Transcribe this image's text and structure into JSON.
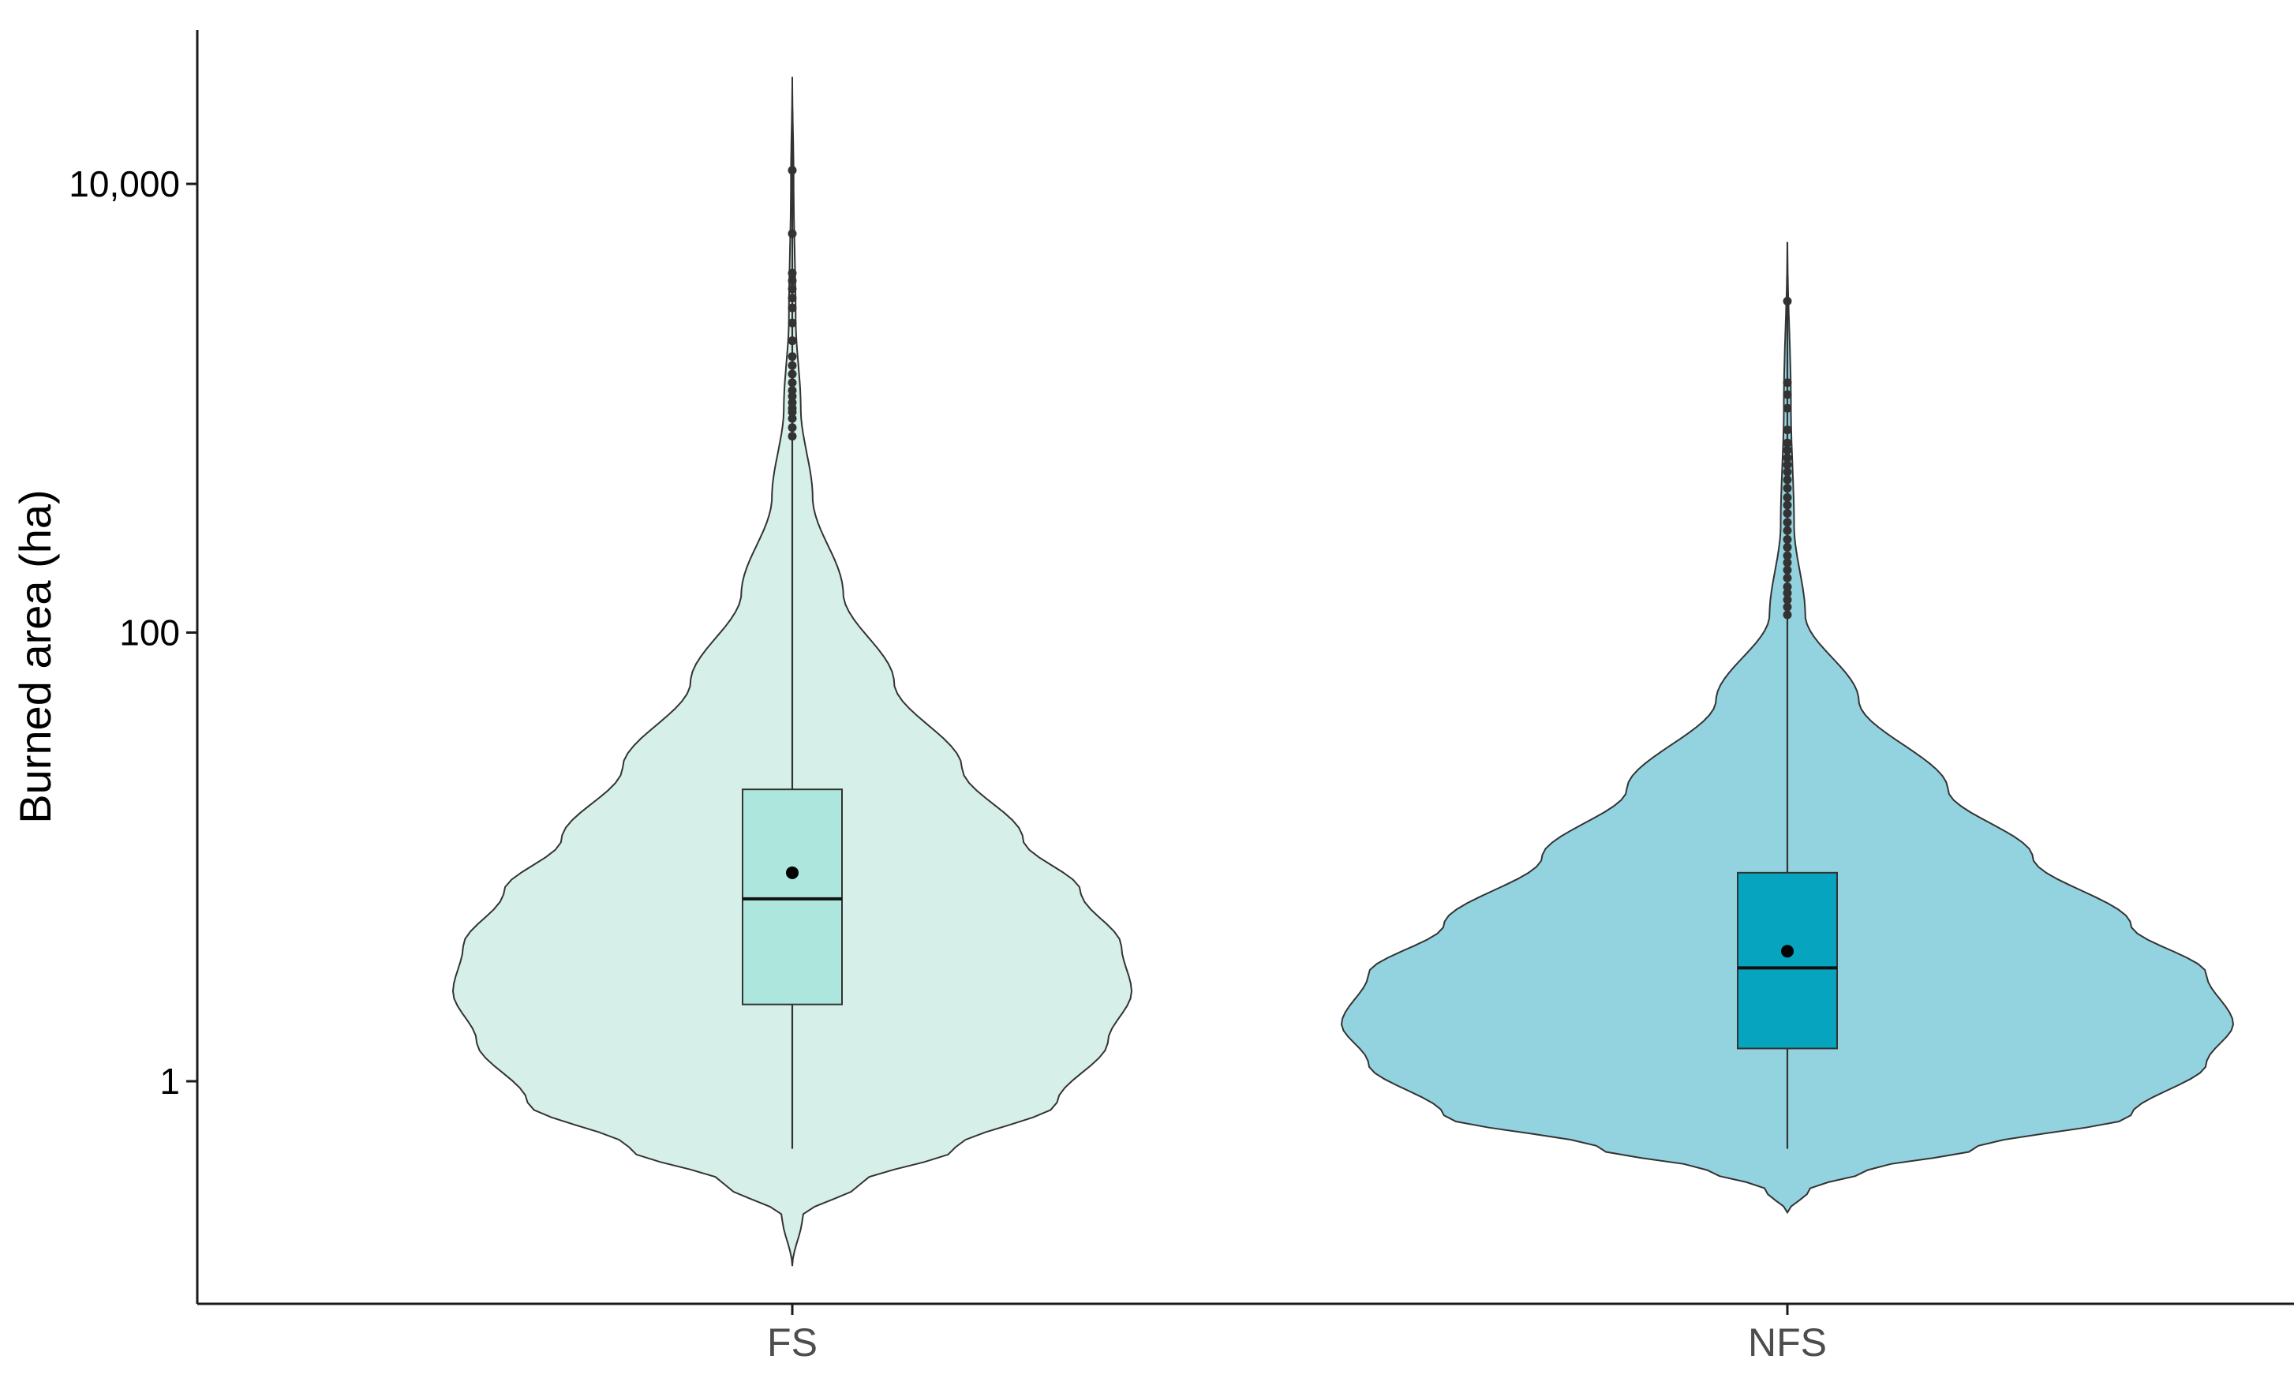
{
  "colors": {
    "fs_violin": "#d6f0e9",
    "fs_box": "#ade6dc",
    "nfs_violin": "#93d2df",
    "nfs_box": "#06a4be",
    "outline": "#333333",
    "axis": "#1a1a1a"
  },
  "chart_data": {
    "type": "violin",
    "ylabel": "Burned area (ha)",
    "xlabel": "",
    "yscale": "log10",
    "ylim": [
      0.1,
      40000
    ],
    "y_ticks": [
      1,
      100,
      10000
    ],
    "y_tick_labels": [
      "1",
      "100",
      "10,000"
    ],
    "grid": false,
    "legend": "none",
    "categories": [
      "FS",
      "NFS"
    ],
    "groups": [
      {
        "label": "FS",
        "violin_min": 0.15,
        "violin_max": 30000,
        "density_profile": [
          [
            0.15,
            0.0
          ],
          [
            0.25,
            0.03
          ],
          [
            0.35,
            0.2
          ],
          [
            0.5,
            0.48
          ],
          [
            0.8,
            0.78
          ],
          [
            1.5,
            0.93
          ],
          [
            2.5,
            1.0
          ],
          [
            4,
            0.97
          ],
          [
            7,
            0.85
          ],
          [
            12,
            0.68
          ],
          [
            25,
            0.5
          ],
          [
            60,
            0.3
          ],
          [
            150,
            0.15
          ],
          [
            400,
            0.06
          ],
          [
            1000,
            0.025
          ],
          [
            2500,
            0.01
          ],
          [
            10000,
            0.004
          ],
          [
            30000,
            0.0
          ]
        ],
        "q1": 2.2,
        "median": 6.5,
        "q3": 20,
        "mean": 8.5,
        "whisker_low": 0.5,
        "whisker_high": 18000,
        "outliers": [
          750,
          820,
          900,
          960,
          1000,
          1060,
          1130,
          1200,
          1300,
          1420,
          1550,
          1700,
          2000,
          2400,
          2800,
          3100,
          3400,
          3700,
          4000,
          6000,
          11500
        ]
      },
      {
        "label": "NFS",
        "violin_min": 0.26,
        "violin_max": 5500,
        "density_profile": [
          [
            0.26,
            0.0
          ],
          [
            0.33,
            0.05
          ],
          [
            0.4,
            0.18
          ],
          [
            0.5,
            0.42
          ],
          [
            0.7,
            0.77
          ],
          [
            1.2,
            0.94
          ],
          [
            1.8,
            1.0
          ],
          [
            3,
            0.94
          ],
          [
            5,
            0.77
          ],
          [
            10,
            0.55
          ],
          [
            20,
            0.36
          ],
          [
            50,
            0.16
          ],
          [
            120,
            0.04
          ],
          [
            300,
            0.015
          ],
          [
            1000,
            0.008
          ],
          [
            5500,
            0.0
          ]
        ],
        "q1": 1.4,
        "median": 3.2,
        "q3": 8.5,
        "mean": 3.8,
        "whisker_low": 0.5,
        "whisker_high": 5500,
        "outliers": [
          120,
          130,
          140,
          150,
          160,
          175,
          190,
          205,
          220,
          240,
          260,
          285,
          310,
          340,
          370,
          400,
          440,
          480,
          520,
          560,
          600,
          650,
          700,
          800,
          1000,
          1150,
          1300,
          3000
        ]
      }
    ]
  }
}
